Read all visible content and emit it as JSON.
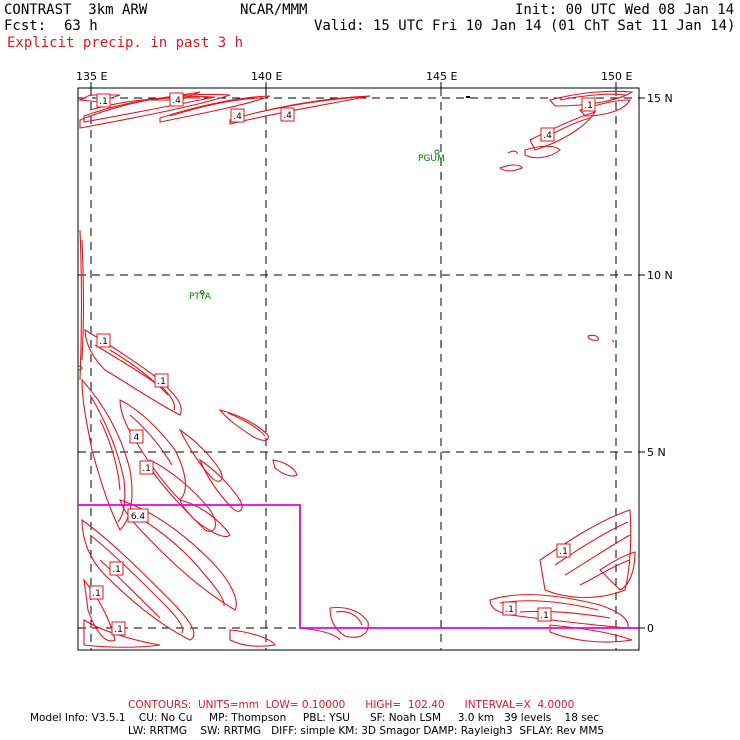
{
  "header": {
    "model": "CONTRAST  3km ARW",
    "center": "NCAR/MMM",
    "init": "Init: 00 UTC Wed 08 Jan 14",
    "fcst_label": "Fcst:",
    "fcst_value": "63 h",
    "valid": "Valid: 15 UTC Fri 10 Jan 14 (01 ChT Sat 11 Jan 14)",
    "field": "Explicit precip. in past 3 h"
  },
  "map": {
    "lon_labels": [
      "135 E",
      "140 E",
      "145 E",
      "150 E"
    ],
    "lat_labels": [
      "15 N",
      "10 N",
      "5 N",
      "0"
    ],
    "stations": [
      "PGUM",
      "PTYA"
    ],
    "contour_labels": [
      ".1",
      ".4",
      ".4",
      ".4",
      ".1",
      ".4",
      ".1",
      ".1",
      "4",
      ".1",
      "6.4",
      ".1",
      ".1",
      ".1",
      ".1",
      ".1",
      ".1"
    ],
    "colors": {
      "contour": "#e8141e",
      "box": "#e600e6",
      "station": "#008000",
      "frame": "#000000"
    }
  },
  "footer": {
    "contours_label": "CONTOURS:  UNITS=mm  LOW= 0.10000      HIGH=  102.40      INTERVAL=X  4.0000",
    "model_info": "Model Info: V3.5.1    CU: No Cu     MP: Thompson     PBL: YSU      SF: Noah LSM     3.0 km   39 levels    18 sec",
    "model_info2": "LW: RRTMG    SW: RRTMG   DIFF: simple KM: 3D Smagor DAMP: Rayleigh3  SFLAY: Rev MM5"
  }
}
